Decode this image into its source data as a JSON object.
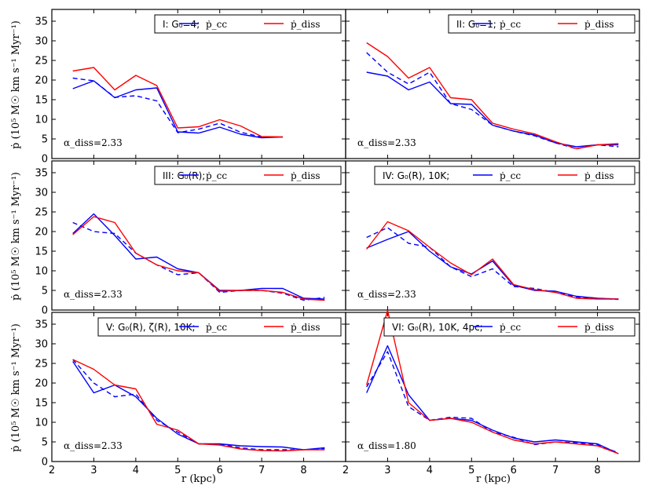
{
  "figure": {
    "xlabel": "r (kpc)",
    "ylabel": "ṗ (10⁵ M☉ km s⁻¹ Myr⁻¹)"
  },
  "chart_data": [
    {
      "type": "line",
      "panel": "I",
      "legend_title": "I: G₀=4;",
      "legend_position": "top-right",
      "annotation": "α_diss=2.33",
      "xlim": [
        2,
        9
      ],
      "ylim": [
        0,
        38
      ],
      "xticks": [
        2,
        3,
        4,
        5,
        6,
        7,
        8
      ],
      "yticks": [
        0,
        5,
        10,
        15,
        20,
        25,
        30,
        35
      ],
      "series": [
        {
          "name": "ṗ_cc",
          "color": "#0000ff",
          "style": "solid",
          "x": [
            2.5,
            3,
            3.5,
            4,
            4.5,
            5,
            5.5,
            6,
            6.5,
            7,
            7.5
          ],
          "y": [
            17.8,
            19.8,
            15.5,
            17.5,
            18.0,
            6.8,
            6.5,
            8.0,
            6.2,
            5.3,
            5.5
          ]
        },
        {
          "name": "ṗ_cc (dashed)",
          "color": "#0000ff",
          "style": "dashed",
          "x": [
            2.5,
            3,
            3.5,
            4,
            4.5,
            5,
            5.5,
            6,
            6.5,
            7,
            7.5
          ],
          "y": [
            20.5,
            19.8,
            15.6,
            16.0,
            14.7,
            6.6,
            7.5,
            9.0,
            6.7,
            5.5,
            5.5
          ]
        },
        {
          "name": "ṗ_diss",
          "color": "#ff0000",
          "style": "solid",
          "x": [
            2.5,
            3,
            3.5,
            4,
            4.5,
            5,
            5.5,
            6,
            6.5,
            7,
            7.5
          ],
          "y": [
            22.3,
            23.2,
            17.5,
            21.2,
            18.6,
            7.8,
            8.1,
            9.9,
            8.3,
            5.6,
            5.5
          ]
        }
      ]
    },
    {
      "type": "line",
      "panel": "II",
      "legend_title": "II: G₀=1;",
      "legend_position": "top-right",
      "annotation": "α_diss=2.33",
      "xlim": [
        2,
        9
      ],
      "ylim": [
        0,
        38
      ],
      "xticks": [
        2,
        3,
        4,
        5,
        6,
        7,
        8
      ],
      "yticks": [
        0,
        5,
        10,
        15,
        20,
        25,
        30,
        35
      ],
      "series": [
        {
          "name": "ṗ_cc",
          "color": "#0000ff",
          "style": "solid",
          "x": [
            2.5,
            3,
            3.5,
            4,
            4.5,
            5,
            5.5,
            6,
            6.5,
            7,
            7.5,
            8,
            8.5
          ],
          "y": [
            22.0,
            21.0,
            17.5,
            19.5,
            14.0,
            13.8,
            8.5,
            7.0,
            6.0,
            4.0,
            3.0,
            3.5,
            3.5
          ]
        },
        {
          "name": "ṗ_cc (dashed)",
          "color": "#0000ff",
          "style": "dashed",
          "x": [
            2.5,
            3,
            3.5,
            4,
            4.5,
            5,
            5.5,
            6,
            6.5,
            7,
            7.5,
            8,
            8.5
          ],
          "y": [
            27.0,
            22.0,
            19.0,
            22.0,
            14.0,
            12.5,
            8.5,
            7.0,
            5.8,
            4.0,
            2.5,
            3.5,
            3.0
          ]
        },
        {
          "name": "ṗ_diss",
          "color": "#ff0000",
          "style": "solid",
          "x": [
            2.5,
            3,
            3.5,
            4,
            4.5,
            5,
            5.5,
            6,
            6.5,
            7,
            7.5,
            8,
            8.5
          ],
          "y": [
            29.5,
            26.0,
            20.5,
            23.2,
            15.5,
            15.0,
            9.0,
            7.5,
            6.3,
            4.3,
            2.5,
            3.5,
            3.8
          ]
        }
      ]
    },
    {
      "type": "line",
      "panel": "III",
      "legend_title": "III: G₀(R);",
      "legend_position": "top-right",
      "annotation": "α_diss=2.33",
      "xlim": [
        2,
        9
      ],
      "ylim": [
        0,
        38
      ],
      "xticks": [
        2,
        3,
        4,
        5,
        6,
        7,
        8
      ],
      "yticks": [
        0,
        5,
        10,
        15,
        20,
        25,
        30,
        35
      ],
      "series": [
        {
          "name": "ṗ_cc",
          "color": "#0000ff",
          "style": "solid",
          "x": [
            2.5,
            3,
            3.5,
            4,
            4.5,
            5,
            5.5,
            6,
            6.5,
            7,
            7.5,
            8,
            8.5
          ],
          "y": [
            19.5,
            24.5,
            19.0,
            13.0,
            13.5,
            10.5,
            9.5,
            5.0,
            5.0,
            5.5,
            5.5,
            3.0,
            2.8
          ]
        },
        {
          "name": "ṗ_cc (dashed)",
          "color": "#0000ff",
          "style": "dashed",
          "x": [
            2.5,
            3,
            3.5,
            4,
            4.5,
            5,
            5.5,
            6,
            6.5,
            7,
            7.5,
            8,
            8.5
          ],
          "y": [
            22.3,
            20.0,
            19.5,
            14.5,
            11.5,
            9.0,
            9.5,
            4.5,
            5.0,
            5.0,
            4.3,
            2.5,
            3.2
          ]
        },
        {
          "name": "ṗ_diss",
          "color": "#ff0000",
          "style": "solid",
          "x": [
            2.5,
            3,
            3.5,
            4,
            4.5,
            5,
            5.5,
            6,
            6.5,
            7,
            7.5,
            8,
            8.5
          ],
          "y": [
            19.2,
            23.8,
            22.3,
            14.5,
            11.5,
            10.0,
            9.5,
            4.8,
            5.0,
            5.0,
            4.5,
            2.8,
            2.5
          ]
        }
      ]
    },
    {
      "type": "line",
      "panel": "IV",
      "legend_title": "IV: G₀(R), 10K;",
      "legend_position": "top-right",
      "annotation": "α_diss=2.33",
      "xlim": [
        2,
        9
      ],
      "ylim": [
        0,
        38
      ],
      "xticks": [
        2,
        3,
        4,
        5,
        6,
        7,
        8
      ],
      "yticks": [
        0,
        5,
        10,
        15,
        20,
        25,
        30,
        35
      ],
      "series": [
        {
          "name": "ṗ_cc",
          "color": "#0000ff",
          "style": "solid",
          "x": [
            2.5,
            3,
            3.5,
            4,
            4.5,
            5,
            5.5,
            6,
            6.5,
            7,
            7.5,
            8,
            8.5
          ],
          "y": [
            15.8,
            18.0,
            20.0,
            15.0,
            11.0,
            9.2,
            12.5,
            6.3,
            5.0,
            4.8,
            3.5,
            3.0,
            2.8
          ]
        },
        {
          "name": "ṗ_cc (dashed)",
          "color": "#0000ff",
          "style": "dashed",
          "x": [
            2.5,
            3,
            3.5,
            4,
            4.5,
            5,
            5.5,
            6,
            6.5,
            7,
            7.5,
            8,
            8.5
          ],
          "y": [
            18.5,
            21.0,
            17.0,
            16.0,
            11.0,
            8.5,
            10.5,
            6.0,
            5.5,
            4.5,
            3.3,
            3.0,
            2.7
          ]
        },
        {
          "name": "ṗ_diss",
          "color": "#ff0000",
          "style": "solid",
          "x": [
            2.5,
            3,
            3.5,
            4,
            4.5,
            5,
            5.5,
            6,
            6.5,
            7,
            7.5,
            8,
            8.5
          ],
          "y": [
            15.5,
            22.5,
            20.2,
            16.0,
            12.0,
            9.0,
            13.0,
            6.5,
            5.2,
            4.5,
            3.0,
            2.8,
            2.8
          ]
        }
      ]
    },
    {
      "type": "line",
      "panel": "V",
      "legend_title": "V: G₀(R), ζ(R), 10K;",
      "legend_position": "top-right",
      "annotation": "α_diss=2.33",
      "xlim": [
        2,
        9
      ],
      "ylim": [
        0,
        38
      ],
      "xticks": [
        2,
        3,
        4,
        5,
        6,
        7,
        8
      ],
      "yticks": [
        0,
        5,
        10,
        15,
        20,
        25,
        30,
        35
      ],
      "series": [
        {
          "name": "ṗ_cc",
          "color": "#0000ff",
          "style": "solid",
          "x": [
            2.5,
            3,
            3.5,
            4,
            4.5,
            5,
            5.5,
            6,
            6.5,
            7,
            7.5,
            8,
            8.5
          ],
          "y": [
            25.5,
            17.5,
            19.5,
            16.5,
            11.0,
            7.0,
            4.5,
            4.5,
            4.0,
            3.8,
            3.7,
            3.0,
            3.5
          ]
        },
        {
          "name": "ṗ_cc (dashed)",
          "color": "#0000ff",
          "style": "dashed",
          "x": [
            2.5,
            3,
            3.5,
            4,
            4.5,
            5,
            5.5,
            6,
            6.5,
            7,
            7.5,
            8,
            8.5
          ],
          "y": [
            26.0,
            20.0,
            16.5,
            17.2,
            10.5,
            7.5,
            4.5,
            4.4,
            3.5,
            3.0,
            3.0,
            3.0,
            3.3
          ]
        },
        {
          "name": "ṗ_diss",
          "color": "#ff0000",
          "style": "solid",
          "x": [
            2.5,
            3,
            3.5,
            4,
            4.5,
            5,
            5.5,
            6,
            6.5,
            7,
            7.5,
            8,
            8.5
          ],
          "y": [
            26.0,
            23.5,
            19.5,
            18.5,
            9.5,
            8.0,
            4.5,
            4.2,
            3.2,
            2.8,
            2.7,
            3.0,
            3.0
          ]
        }
      ]
    },
    {
      "type": "line",
      "panel": "VI",
      "legend_title": "VI: G₀(R), 10K, 4pc;",
      "legend_position": "top-right",
      "annotation": "α_diss=1.80",
      "xlim": [
        2,
        9
      ],
      "ylim": [
        0,
        38
      ],
      "xticks": [
        2,
        3,
        4,
        5,
        6,
        7,
        8
      ],
      "yticks": [
        0,
        5,
        10,
        15,
        20,
        25,
        30,
        35
      ],
      "series": [
        {
          "name": "ṗ_cc",
          "color": "#0000ff",
          "style": "solid",
          "x": [
            2.5,
            3,
            3.5,
            4,
            4.5,
            5,
            5.5,
            6,
            6.5,
            7,
            7.5,
            8,
            8.5
          ],
          "y": [
            17.5,
            29.5,
            17.0,
            10.5,
            11.0,
            10.5,
            8.0,
            6.0,
            5.0,
            5.5,
            5.0,
            4.5,
            2.0
          ]
        },
        {
          "name": "ṗ_cc (dashed)",
          "color": "#0000ff",
          "style": "dashed",
          "x": [
            2.5,
            3,
            3.5,
            4,
            4.5,
            5,
            5.5,
            6,
            6.5,
            7,
            7.5,
            8,
            8.5
          ],
          "y": [
            19.0,
            28.0,
            14.0,
            10.5,
            11.3,
            11.0,
            7.5,
            6.2,
            4.3,
            5.0,
            4.8,
            4.3,
            2.2
          ]
        },
        {
          "name": "ṗ_diss",
          "color": "#ff0000",
          "style": "solid",
          "x": [
            2.5,
            3,
            3.5,
            4,
            4.5,
            5,
            5.5,
            6,
            6.5,
            7,
            7.5,
            8,
            8.5
          ],
          "y": [
            19.5,
            38.5,
            15.0,
            10.5,
            11.0,
            10.0,
            7.5,
            5.5,
            4.5,
            5.0,
            4.5,
            4.0,
            2.0
          ]
        }
      ]
    }
  ]
}
